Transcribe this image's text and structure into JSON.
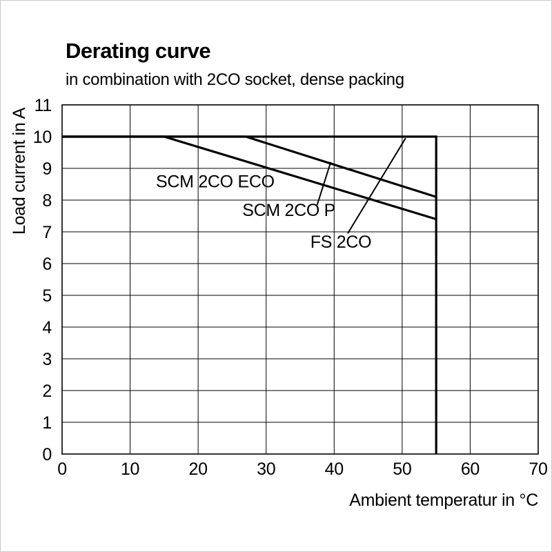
{
  "title": "Derating curve",
  "subtitle": "in combination with 2CO socket, dense packing",
  "chart_data": {
    "type": "line",
    "title": "Derating curve",
    "subtitle": "in combination with 2CO socket, dense packing",
    "xlabel": "Ambient temperatur in °C",
    "ylabel": "Load current in A",
    "xlim": [
      0,
      70
    ],
    "ylim": [
      0,
      11
    ],
    "xticks": [
      0,
      10,
      20,
      30,
      40,
      50,
      60,
      70
    ],
    "yticks": [
      0,
      1,
      2,
      3,
      4,
      5,
      6,
      7,
      8,
      9,
      10,
      11
    ],
    "grid": true,
    "legend_position": "inline-labels",
    "line_color": "#000000",
    "grid_color": "#000000",
    "series": [
      {
        "name": "FS 2CO",
        "points": [
          [
            0,
            10
          ],
          [
            55,
            10
          ],
          [
            55,
            0
          ]
        ],
        "label": {
          "text": "FS 2CO",
          "x": 36.5,
          "y": 6.5,
          "leader": [
            [
              42,
              6.95
            ],
            [
              50.5,
              9.95
            ]
          ]
        }
      },
      {
        "name": "SCM 2CO P",
        "points": [
          [
            0,
            10
          ],
          [
            27,
            10
          ],
          [
            55,
            8.1
          ]
        ],
        "label": {
          "text": "SCM 2CO P",
          "x": 26.5,
          "y": 7.5,
          "leader": [
            [
              37.5,
              7.85
            ],
            [
              39.5,
              9.2
            ]
          ]
        }
      },
      {
        "name": "SCM 2CO ECO",
        "points": [
          [
            0,
            10
          ],
          [
            15,
            10
          ],
          [
            55,
            7.4
          ]
        ],
        "label": {
          "text": "SCM 2CO ECO",
          "x": 13.8,
          "y": 8.4,
          "leader": null
        }
      }
    ]
  }
}
